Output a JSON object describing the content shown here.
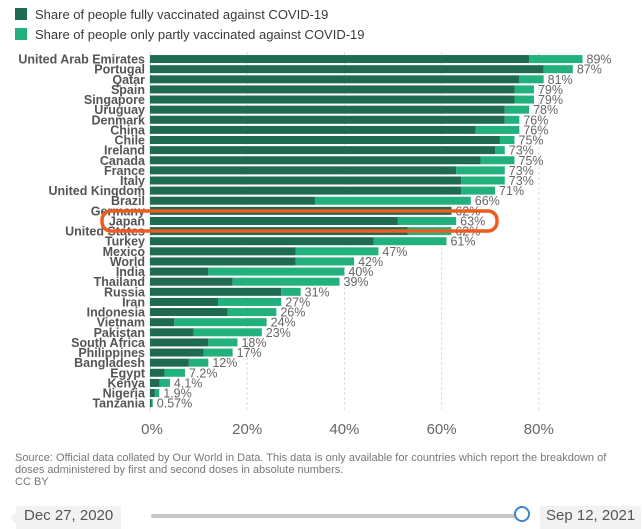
{
  "legend": {
    "full_label": "Share of people fully vaccinated against COVID-19",
    "partial_label": "Share of people only partly vaccinated against COVID-19"
  },
  "colors": {
    "full": "#1e6b52",
    "partial": "#22b07d",
    "highlight": "#ef5a1e",
    "grid": "#dddddd"
  },
  "chart_data": {
    "type": "bar",
    "orientation": "horizontal",
    "stacked": true,
    "categories": [
      "United Arab Emirates",
      "Portugal",
      "Qatar",
      "Spain",
      "Singapore",
      "Uruguay",
      "Denmark",
      "China",
      "Chile",
      "Ireland",
      "Canada",
      "France",
      "Italy",
      "United Kingdom",
      "Brazil",
      "Germany",
      "Japan",
      "United States",
      "Turkey",
      "Mexico",
      "World",
      "India",
      "Thailand",
      "Russia",
      "Iran",
      "Indonesia",
      "Vietnam",
      "Pakistan",
      "South Africa",
      "Philippines",
      "Bangladesh",
      "Egypt",
      "Kenya",
      "Nigeria",
      "Tanzania"
    ],
    "series": [
      {
        "name": "Share of people fully vaccinated against COVID-19",
        "values": [
          78,
          81,
          76,
          75,
          75,
          73,
          73,
          67,
          72,
          71,
          68,
          63,
          64,
          64,
          34,
          62,
          51,
          53,
          46,
          30,
          30,
          12,
          17,
          27,
          14,
          16,
          5,
          9,
          12,
          11,
          8,
          3,
          2,
          1,
          0.3
        ]
      },
      {
        "name": "Share of people only partly vaccinated against COVID-19",
        "values": [
          11,
          6,
          5,
          4,
          4,
          5,
          3,
          9,
          3,
          2,
          7,
          10,
          9,
          7,
          32,
          0,
          12,
          9,
          15,
          17,
          12,
          28,
          22,
          4,
          13,
          10,
          19,
          14,
          6,
          6,
          4,
          4.2,
          2.1,
          0.9,
          0.27
        ]
      }
    ],
    "totals": [
      "89%",
      "87%",
      "81%",
      "79%",
      "79%",
      "78%",
      "76%",
      "76%",
      "75%",
      "73%",
      "75%",
      "73%",
      "73%",
      "71%",
      "66%",
      "62%",
      "63%",
      "62%",
      "61%",
      "47%",
      "42%",
      "40%",
      "39%",
      "31%",
      "27%",
      "26%",
      "24%",
      "23%",
      "18%",
      "17%",
      "12%",
      "7.2%",
      "4.1%",
      "1.9%",
      "0.57%"
    ],
    "x_ticks": [
      "0%",
      "20%",
      "40%",
      "60%",
      "80%"
    ],
    "xlim": [
      0,
      100
    ],
    "grid": true,
    "legend_position": "top-left",
    "highlighted_category": "Japan"
  },
  "source_text": "Source: Official data collated by Our World in Data. This data is only available for countries which report the breakdown of doses administered by first and second doses in absolute numbers.",
  "license": "CC BY",
  "timeline": {
    "start": "Dec 27, 2020",
    "end": "Sep 12, 2021",
    "position": 1.0
  }
}
